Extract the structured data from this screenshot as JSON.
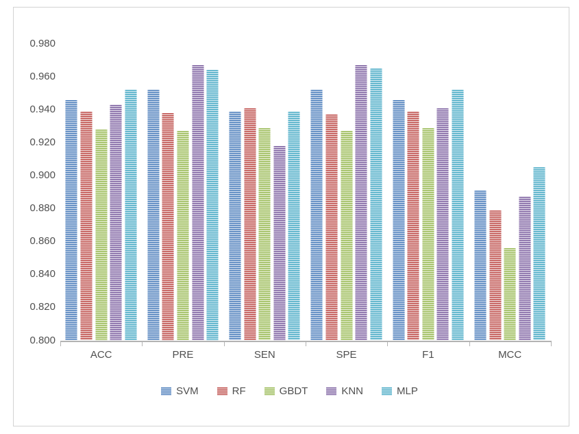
{
  "figure": {
    "background": "#ffffff",
    "border_color": "#d2d2d2",
    "text_color": "#4f4f4f",
    "axis_line_color": "#b3b3b3"
  },
  "chart_data": {
    "type": "bar",
    "title": "",
    "categories": [
      "ACC",
      "PRE",
      "SEN",
      "SPE",
      "F1",
      "MCC"
    ],
    "series": [
      {
        "name": "SVM",
        "color": "#4f81bd",
        "color_light": "#ccd9eb",
        "values": [
          0.946,
          0.952,
          0.939,
          0.952,
          0.946,
          0.891
        ]
      },
      {
        "name": "RF",
        "color": "#c0504d",
        "color_light": "#ecd0cf",
        "values": [
          0.939,
          0.938,
          0.941,
          0.937,
          0.939,
          0.879
        ]
      },
      {
        "name": "GBDT",
        "color": "#9bbb59",
        "color_light": "#e3ecce",
        "values": [
          0.928,
          0.927,
          0.929,
          0.927,
          0.929,
          0.856
        ]
      },
      {
        "name": "KNN",
        "color": "#8064a2",
        "color_light": "#dcd4e6",
        "values": [
          0.943,
          0.967,
          0.918,
          0.967,
          0.941,
          0.887
        ]
      },
      {
        "name": "MLP",
        "color": "#4bacc6",
        "color_light": "#cfe8f0",
        "values": [
          0.952,
          0.964,
          0.939,
          0.965,
          0.952,
          0.905
        ]
      }
    ],
    "ylim": [
      0.8,
      0.98
    ],
    "ytick_labels": [
      "0.980",
      "0.960",
      "0.940",
      "0.920",
      "0.900",
      "0.880",
      "0.860",
      "0.840",
      "0.820",
      "0.800"
    ],
    "ytick_values": [
      0.98,
      0.96,
      0.94,
      0.92,
      0.9,
      0.88,
      0.86,
      0.84,
      0.82,
      0.8
    ],
    "grid": false,
    "legend_position": "bottom"
  }
}
